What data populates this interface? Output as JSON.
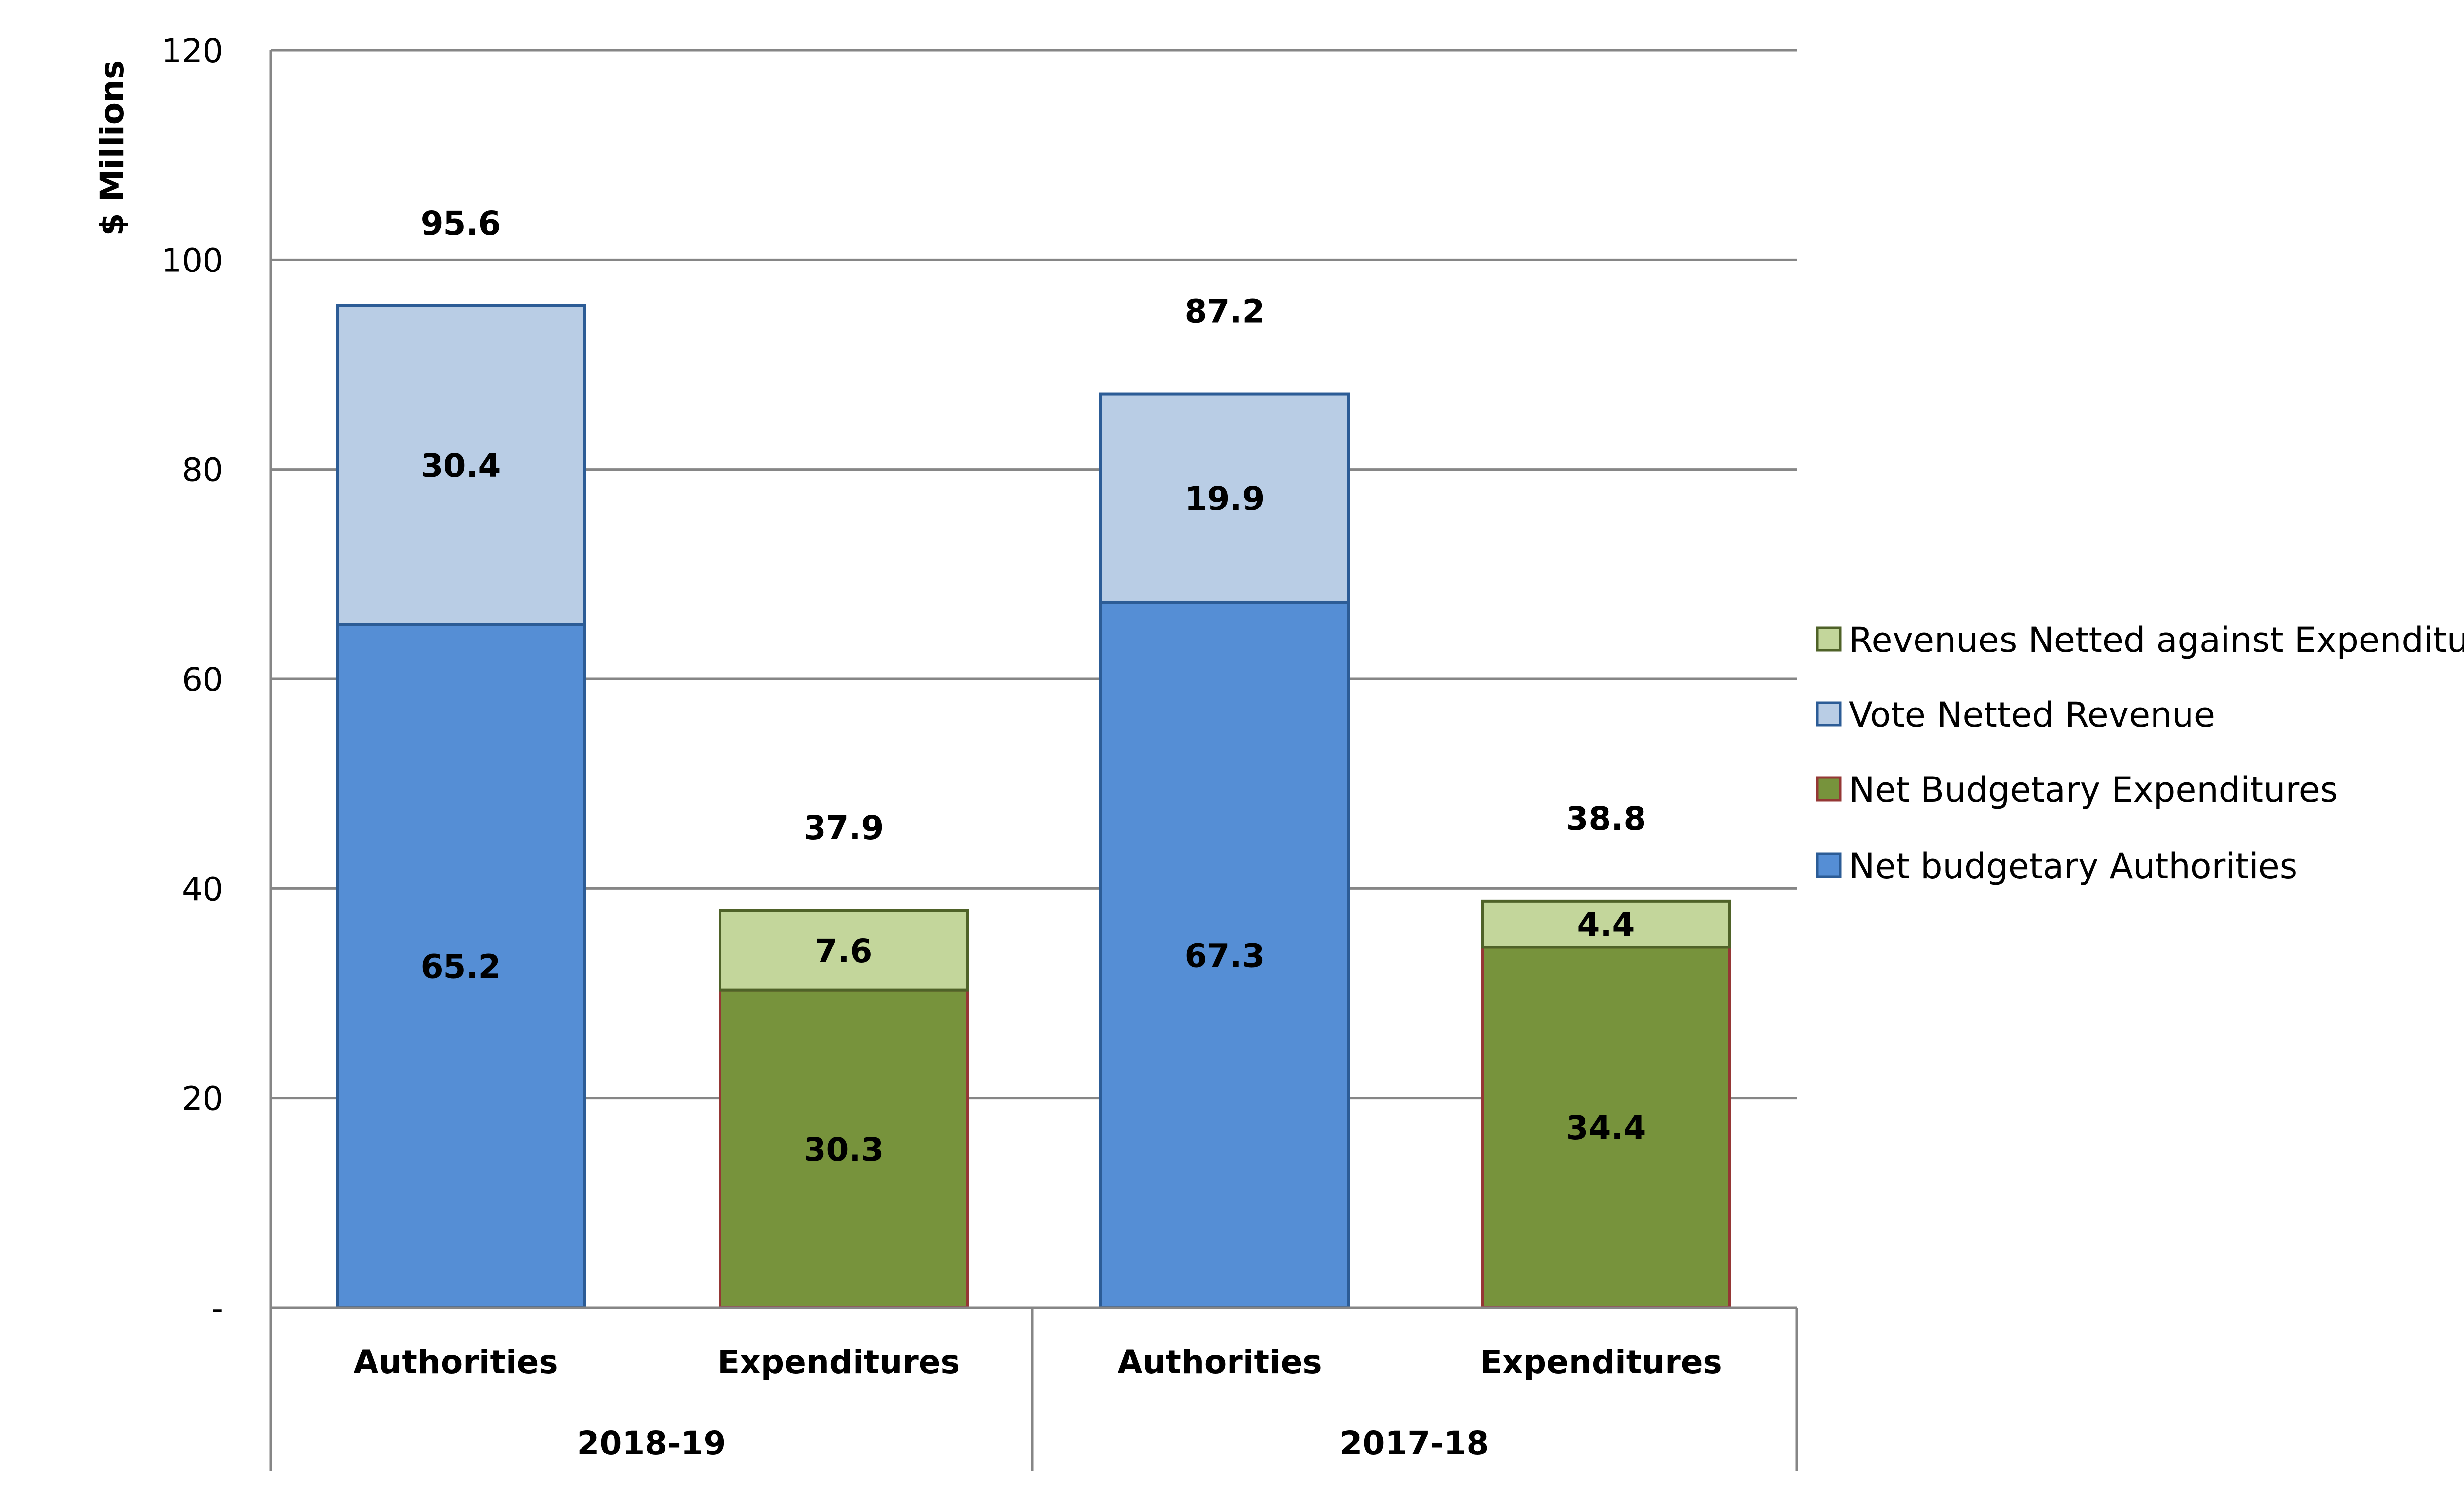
{
  "chart_data": {
    "type": "bar",
    "stacked": true,
    "ylabel": "$ Millions",
    "ylim": [
      0,
      120
    ],
    "yticks": [
      0,
      20,
      40,
      60,
      80,
      100,
      120
    ],
    "ytick_labels": [
      "-",
      "20",
      "40",
      "60",
      "80",
      "100",
      "120"
    ],
    "grid": true,
    "legend_position": "right",
    "groups": [
      {
        "label": "2018-19",
        "categories": [
          "Authorities",
          "Expenditures"
        ]
      },
      {
        "label": "2017-18",
        "categories": [
          "Authorities",
          "Expenditures"
        ]
      }
    ],
    "bars": [
      {
        "group": "2018-19",
        "category": "Authorities",
        "total": 95.6,
        "segments": [
          {
            "series": "Net budgetary Authorities",
            "value": 65.2
          },
          {
            "series": "Vote Netted Revenue",
            "value": 30.4
          }
        ]
      },
      {
        "group": "2018-19",
        "category": "Expenditures",
        "total": 37.9,
        "segments": [
          {
            "series": "Net Budgetary Expenditures",
            "value": 30.3
          },
          {
            "series": "Revenues Netted against Expenditures",
            "value": 7.6
          }
        ]
      },
      {
        "group": "2017-18",
        "category": "Authorities",
        "total": 87.2,
        "segments": [
          {
            "series": "Net budgetary Authorities",
            "value": 67.3
          },
          {
            "series": "Vote Netted Revenue",
            "value": 19.9
          }
        ]
      },
      {
        "group": "2017-18",
        "category": "Expenditures",
        "total": 38.8,
        "segments": [
          {
            "series": "Net Budgetary Expenditures",
            "value": 34.4
          },
          {
            "series": "Revenues Netted against Expenditures",
            "value": 4.4
          }
        ]
      }
    ],
    "series": [
      {
        "name": "Revenues Netted against Expenditures",
        "color": "#C3D69B",
        "border": "#4F6228"
      },
      {
        "name": "Vote Netted Revenue",
        "color": "#B9CDE5",
        "border": "#2C5C96"
      },
      {
        "name": "Net Budgetary Expenditures",
        "color": "#77933C",
        "border": "#953735"
      },
      {
        "name": "Net budgetary Authorities",
        "color": "#558ED5",
        "border": "#2C5C96"
      }
    ]
  }
}
